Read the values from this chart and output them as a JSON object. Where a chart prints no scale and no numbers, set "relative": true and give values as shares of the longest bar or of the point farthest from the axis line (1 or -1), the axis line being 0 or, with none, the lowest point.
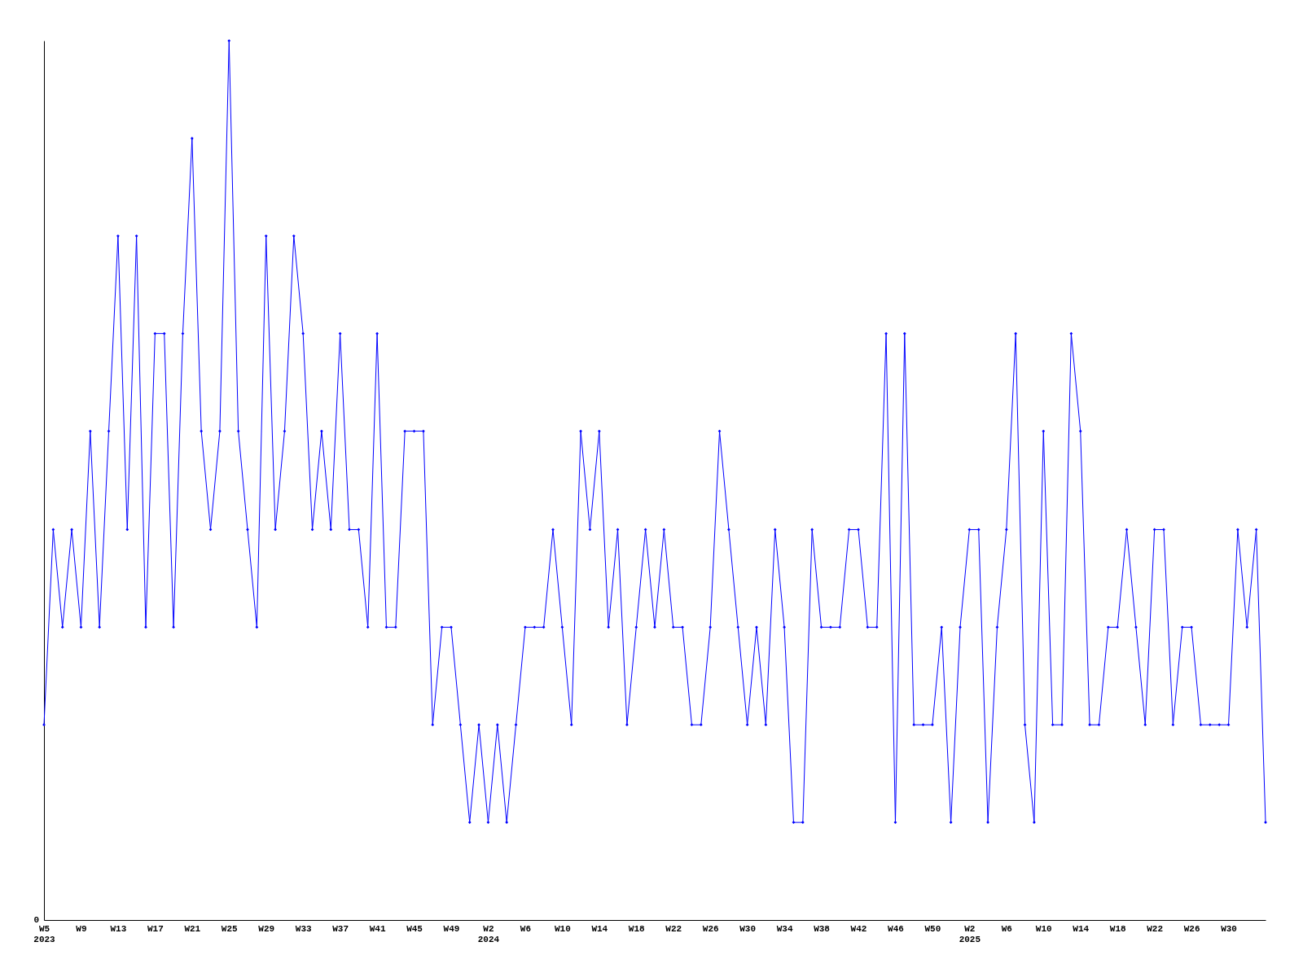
{
  "chart_data": {
    "type": "line",
    "relative": true,
    "annotations": [
      "0"
    ],
    "grid": false,
    "marker": "diamond",
    "line_style": "solid",
    "categories": [
      "W5\n2023",
      null,
      null,
      null,
      "W9",
      null,
      null,
      null,
      "W13",
      null,
      null,
      null,
      "W17",
      null,
      null,
      null,
      "W21",
      null,
      null,
      null,
      "W25",
      null,
      null,
      null,
      "W29",
      null,
      null,
      null,
      "W33",
      null,
      null,
      null,
      "W37",
      null,
      null,
      null,
      "W41",
      null,
      null,
      null,
      "W45",
      null,
      null,
      null,
      "W49",
      null,
      null,
      null,
      "W2\n2024",
      null,
      null,
      null,
      "W6",
      null,
      null,
      null,
      "W10",
      null,
      null,
      null,
      "W14",
      null,
      null,
      null,
      "W18",
      null,
      null,
      null,
      "W22",
      null,
      null,
      null,
      "W26",
      null,
      null,
      null,
      "W30",
      null,
      null,
      null,
      "W34",
      null,
      null,
      null,
      "W38",
      null,
      null,
      null,
      "W42",
      null,
      null,
      null,
      "W46",
      null,
      null,
      null,
      "W50",
      null,
      null,
      null,
      "W2\n2025",
      null,
      null,
      null,
      "W6",
      null,
      null,
      null,
      "W10",
      null,
      null,
      null,
      "W14",
      null,
      null,
      null,
      "W18",
      null,
      null,
      null,
      "W22",
      null,
      null,
      null,
      "W26",
      null,
      null,
      null,
      "W30",
      null,
      null,
      null,
      null
    ],
    "series": [
      {
        "color": "#0000ff",
        "values": [
          0.222,
          0.444,
          0.333,
          0.444,
          0.333,
          0.556,
          0.333,
          0.556,
          0.778,
          0.444,
          0.778,
          0.333,
          0.667,
          0.667,
          0.333,
          0.667,
          0.889,
          0.556,
          0.444,
          0.556,
          1,
          0.556,
          0.444,
          0.333,
          0.778,
          0.444,
          0.556,
          0.778,
          0.667,
          0.444,
          0.556,
          0.444,
          0.667,
          0.444,
          0.444,
          0.333,
          0.667,
          0.333,
          0.333,
          0.556,
          0.556,
          0.556,
          0.222,
          0.333,
          0.333,
          0.222,
          0.111,
          0.222,
          0.111,
          0.222,
          0.111,
          0.222,
          0.333,
          0.333,
          0.333,
          0.444,
          0.333,
          0.222,
          0.556,
          0.444,
          0.556,
          0.333,
          0.444,
          0.222,
          0.333,
          0.444,
          0.333,
          0.444,
          0.333,
          0.333,
          0.222,
          0.222,
          0.333,
          0.556,
          0.444,
          0.333,
          0.222,
          0.333,
          0.222,
          0.444,
          0.333,
          0.111,
          0.111,
          0.444,
          0.333,
          0.333,
          0.333,
          0.444,
          0.444,
          0.333,
          0.333,
          0.667,
          0.111,
          0.667,
          0.222,
          0.222,
          0.222,
          0.333,
          0.111,
          0.333,
          0.444,
          0.444,
          0.111,
          0.333,
          0.444,
          0.667,
          0.222,
          0.111,
          0.556,
          0.222,
          0.222,
          0.667,
          0.556,
          0.222,
          0.222,
          0.333,
          0.333,
          0.444,
          0.333,
          0.222,
          0.444,
          0.444,
          0.222,
          0.333,
          0.333,
          0.222,
          0.222,
          0.222,
          0.222,
          0.444,
          0.333,
          0.444,
          0.111
        ]
      }
    ]
  }
}
